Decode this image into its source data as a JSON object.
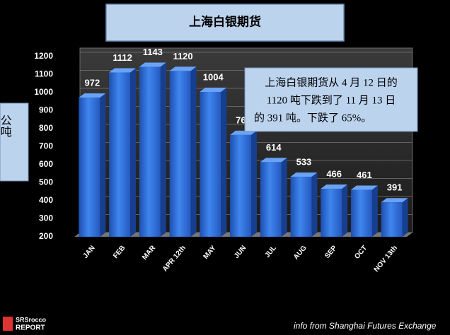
{
  "chart_data": {
    "type": "bar",
    "title": "上海白银期货",
    "y_label": "公吨",
    "annotation": [
      "上海白银期货从 4 月 12 日的",
      "1120 吨下跌到了 11 月 13 日",
      "的 391 吨。下跌了 65%。"
    ],
    "categories": [
      "JAN",
      "FEB",
      "MAR",
      "APR 12th",
      "MAY",
      "JUN",
      "JUL",
      "AUG",
      "SEP",
      "OCT",
      "NOV 13th"
    ],
    "values": [
      972,
      1112,
      1143,
      1120,
      1004,
      765,
      614,
      533,
      466,
      461,
      391
    ],
    "color": "#2f6fd6",
    "ylim": [
      200,
      1200
    ],
    "yticks": [
      200,
      300,
      400,
      500,
      600,
      700,
      800,
      900,
      1000,
      1100,
      1200
    ],
    "grid": true,
    "source": "info from Shanghai Futures Exchange",
    "logo": [
      "SRSrocco",
      "REPORT"
    ]
  }
}
